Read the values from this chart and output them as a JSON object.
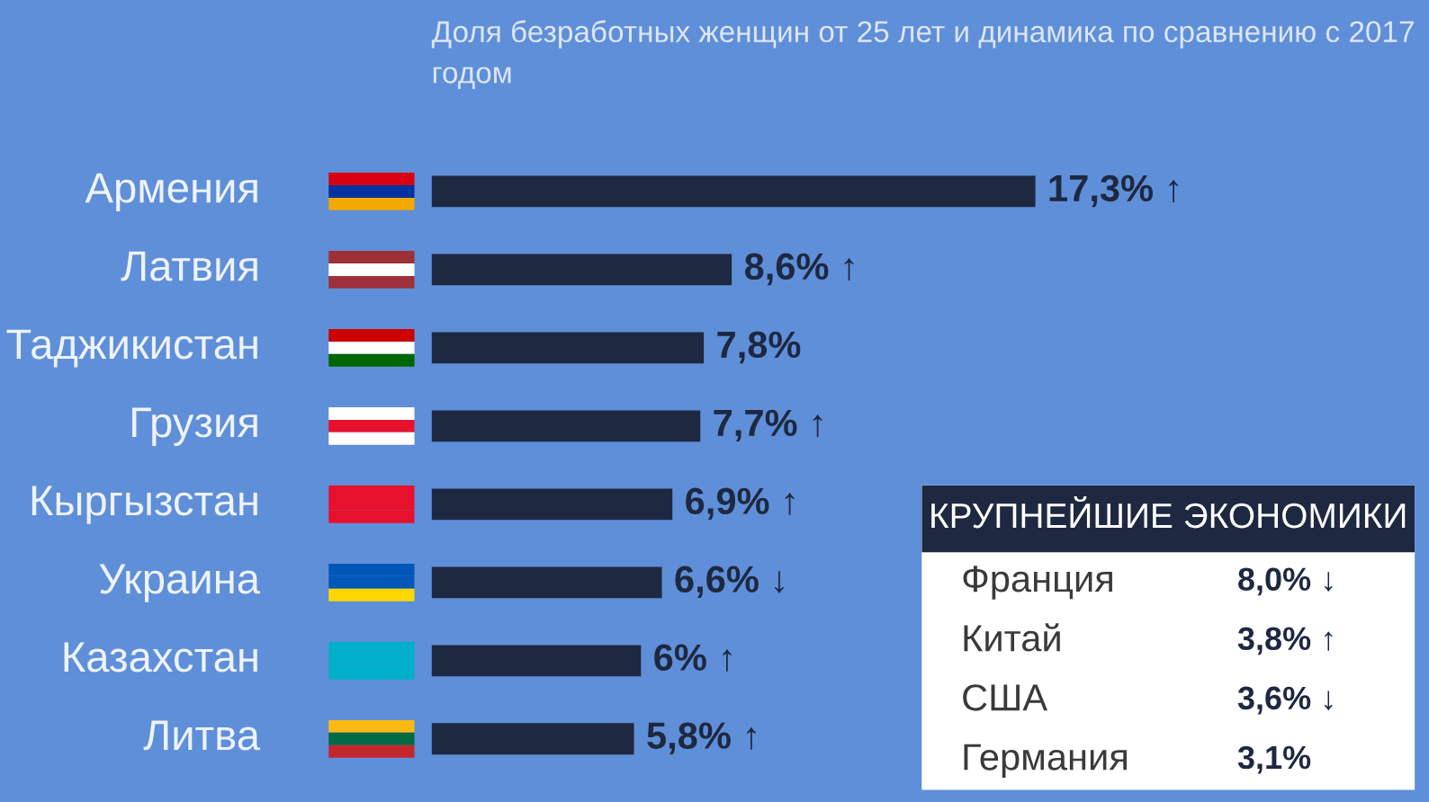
{
  "chart_data": [
    {
      "type": "bar",
      "orientation": "horizontal",
      "title": "Доля безработных женщин от 25 лет и динамика по сравнению с 2017 годом",
      "categories": [
        "Армения",
        "Латвия",
        "Таджикистан",
        "Грузия",
        "Кыргызстан",
        "Украина",
        "Казахстан",
        "Литва"
      ],
      "values": [
        17.3,
        8.6,
        7.8,
        7.7,
        6.9,
        6.6,
        6,
        5.8
      ],
      "value_labels": [
        "17,3% ↑",
        "8,6% ↑",
        "7,8%",
        "7,7% ↑",
        "6,9% ↑",
        "6,6% ↓",
        "6% ↑",
        "5,8% ↑"
      ],
      "color": "#1e2841"
    },
    {
      "type": "other",
      "title": "КРУПНЕЙШИЕ ЭКОНОМИКИ",
      "categories": [
        "Франция",
        "Китай",
        "США",
        "Германия"
      ],
      "value_labels": [
        "8,0% ↓",
        "3,8% ↑",
        "3,6% ↓",
        "3,1%"
      ]
    }
  ]
}
